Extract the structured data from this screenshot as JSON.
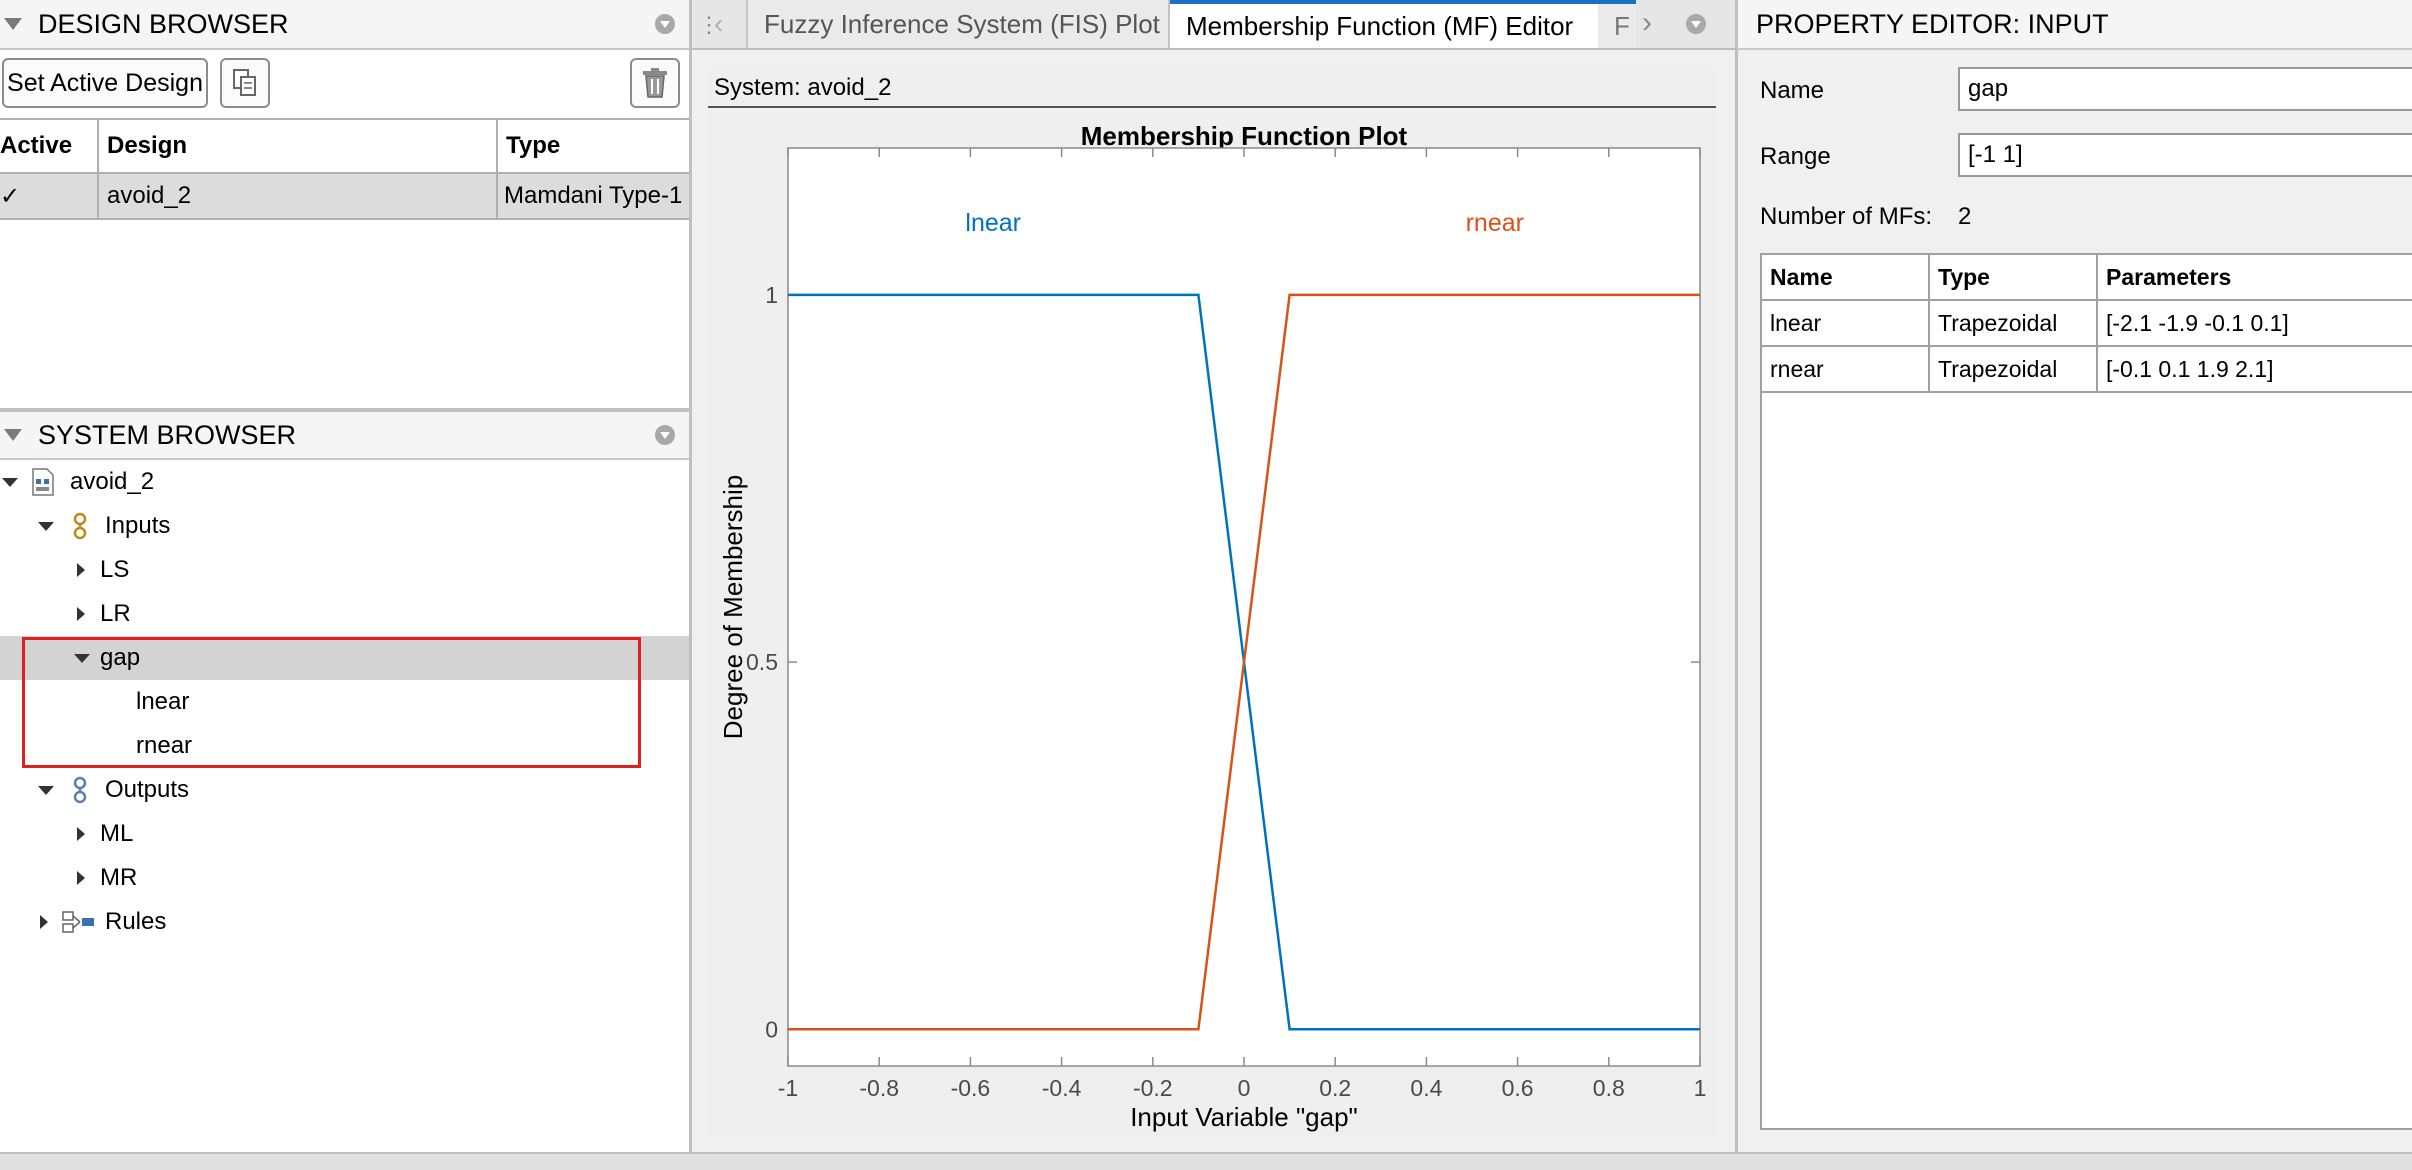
{
  "design_browser": {
    "title": "DESIGN BROWSER",
    "set_active_label": "Set Active Design",
    "table": {
      "headers": [
        "Active",
        "Design",
        "Type"
      ],
      "rows": [
        {
          "active": "✓",
          "design": "avoid_2",
          "type": "Mamdani Type-1"
        }
      ]
    }
  },
  "system_browser": {
    "title": "SYSTEM BROWSER",
    "tree": {
      "root": "avoid_2",
      "inputs": "Inputs",
      "input_ls": "LS",
      "input_lr": "LR",
      "input_gap": "gap",
      "mf_lnear": "lnear",
      "mf_rnear": "rnear",
      "outputs": "Outputs",
      "output_ml": "ML",
      "output_mr": "MR",
      "rules": "Rules"
    }
  },
  "tabs": {
    "fis_plot": "Fuzzy Inference System (FIS) Plot",
    "mf_editor": "Membership Function (MF) Editor",
    "partial": "F"
  },
  "plot_panel": {
    "system_label": "System: avoid_2"
  },
  "chart_data": {
    "type": "line",
    "title": "Membership Function Plot",
    "xlabel": "Input Variable \"gap\"",
    "ylabel": "Degree of Membership",
    "xlim": [
      -1,
      1
    ],
    "ylim": [
      -0.05,
      1.2
    ],
    "x_ticks": [
      "-1",
      "-0.8",
      "-0.6",
      "-0.4",
      "-0.2",
      "0",
      "0.2",
      "0.4",
      "0.6",
      "0.8",
      "1"
    ],
    "y_ticks": [
      "0",
      "0.5",
      "1"
    ],
    "series": [
      {
        "name": "lnear",
        "color": "#0072bd",
        "x": [
          -1,
          -0.1,
          0.1,
          1
        ],
        "y": [
          1,
          1,
          0,
          0
        ]
      },
      {
        "name": "rnear",
        "color": "#d95319",
        "x": [
          -1,
          -0.1,
          0.1,
          1
        ],
        "y": [
          0,
          0,
          1,
          1
        ]
      }
    ]
  },
  "property_editor": {
    "title": "PROPERTY EDITOR: INPUT",
    "name_label": "Name",
    "name_value": "gap",
    "range_label": "Range",
    "range_value": "[-1 1]",
    "num_mfs_label": "Number of MFs:",
    "num_mfs_value": "2",
    "mf_table": {
      "headers": [
        "Name",
        "Type",
        "Parameters"
      ],
      "rows": [
        {
          "name": "lnear",
          "type": "Trapezoidal",
          "params": "[-2.1 -1.9 -0.1 0.1]"
        },
        {
          "name": "rnear",
          "type": "Trapezoidal",
          "params": "[-0.1 0.1 1.9 2.1]"
        }
      ]
    }
  },
  "colors": {
    "selection_outline": "#e02020",
    "tab_active_accent": "#1a6fc4",
    "lnear": "#0072bd",
    "rnear": "#d95319"
  }
}
